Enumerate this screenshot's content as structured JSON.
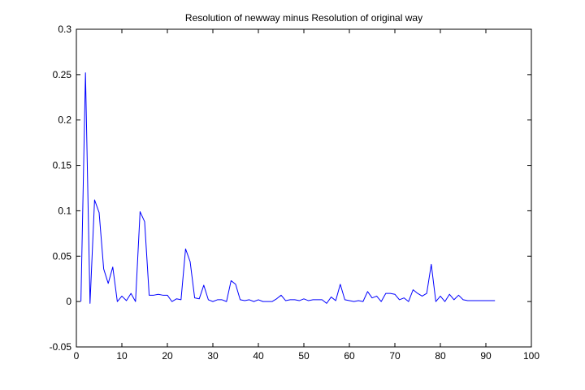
{
  "chart_data": {
    "type": "line",
    "title": "Resolution of newway minus Resolution of original way",
    "xlabel": "",
    "ylabel": "",
    "xlim": [
      0,
      100
    ],
    "ylim": [
      -0.05,
      0.3
    ],
    "xticks": [
      0,
      10,
      20,
      30,
      40,
      50,
      60,
      70,
      80,
      90,
      100
    ],
    "xtick_labels": [
      "0",
      "10",
      "20",
      "30",
      "40",
      "50",
      "60",
      "70",
      "80",
      "90",
      "100"
    ],
    "yticks": [
      -0.05,
      0,
      0.05,
      0.1,
      0.15,
      0.2,
      0.25,
      0.3
    ],
    "ytick_labels": [
      "-0.05",
      "0",
      "0.05",
      "0.1",
      "0.15",
      "0.2",
      "0.25",
      "0.3"
    ],
    "grid": false,
    "line_color": "#0000ff",
    "series": [
      {
        "x": [
          1,
          2,
          3,
          4,
          5,
          6,
          7,
          8,
          9,
          10,
          11,
          12,
          13,
          14,
          15,
          16,
          17,
          18,
          19,
          20,
          21,
          22,
          23,
          24,
          25,
          26,
          27,
          28,
          29,
          30,
          31,
          32,
          33,
          34,
          35,
          36,
          37,
          38,
          39,
          40,
          41,
          42,
          43,
          44,
          45,
          46,
          47,
          48,
          49,
          50,
          51,
          52,
          53,
          54,
          55,
          56,
          57,
          58,
          59,
          60,
          61,
          62,
          63,
          64,
          65,
          66,
          67,
          68,
          69,
          70,
          71,
          72,
          73,
          74,
          75,
          76,
          77,
          78,
          79,
          80,
          81,
          82,
          83,
          84,
          85,
          86,
          87,
          88,
          89,
          90,
          91,
          92
        ],
        "values": [
          0,
          0.252,
          -0.002,
          0.112,
          0.098,
          0.036,
          0.02,
          0.038,
          0,
          0.006,
          0.001,
          0.009,
          0,
          0.099,
          0.088,
          0.007,
          0.007,
          0.008,
          0.007,
          0.007,
          0,
          0.003,
          0.002,
          0.058,
          0.044,
          0.004,
          0.003,
          0.018,
          0.002,
          0,
          0.002,
          0.002,
          0,
          0.023,
          0.019,
          0.002,
          0.001,
          0.002,
          0,
          0.002,
          0,
          0,
          0,
          0.003,
          0.007,
          0.001,
          0.002,
          0.002,
          0.001,
          0.003,
          0.001,
          0.002,
          0.002,
          0.002,
          -0.002,
          0.005,
          0.001,
          0.019,
          0.002,
          0.001,
          0,
          0.001,
          0,
          0.011,
          0.004,
          0.006,
          0,
          0.009,
          0.009,
          0.008,
          0.002,
          0.004,
          0,
          0.013,
          0.009,
          0.006,
          0.009,
          0.041,
          0,
          0.006,
          0,
          0.008,
          0.002,
          0.007,
          0.002,
          0.001,
          0.001,
          0.001,
          0.001,
          0.001,
          0.001,
          0.001
        ]
      }
    ]
  }
}
